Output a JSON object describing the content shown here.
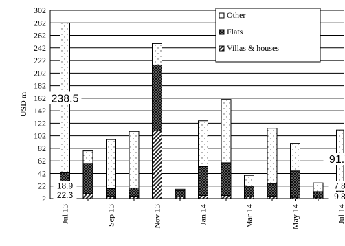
{
  "chart_data": {
    "type": "bar",
    "stacked": true,
    "ylabel": "USD m",
    "xlabel": "",
    "title": "",
    "ylim": [
      2,
      302
    ],
    "yticks": [
      2,
      22,
      42,
      62,
      82,
      102,
      122,
      142,
      162,
      182,
      202,
      222,
      242,
      262,
      282,
      302
    ],
    "grid": true,
    "legend_position": "top-right",
    "categories": [
      "Jul 13",
      "Aug 13",
      "Sep 13",
      "Oct 13",
      "Nov 13",
      "Dec 13",
      "Jan 14",
      "Feb 14",
      "Mar 14",
      "Apr 14",
      "May 14",
      "Jun 14",
      "Jul 14"
    ],
    "tick_labels": [
      "Jul 13",
      "",
      "Sep 13",
      "",
      "Nov 13",
      "",
      "Jan 14",
      "",
      "Mar 14",
      "",
      "May 14",
      "",
      "Jul 14"
    ],
    "series": [
      {
        "name": "Villas & houses",
        "pattern": "diagonal-hatch",
        "values": [
          22.3,
          8,
          4,
          4,
          108,
          3,
          5,
          5,
          3,
          4,
          2,
          2,
          9.8
        ]
      },
      {
        "name": "Flats",
        "pattern": "crosshatch",
        "values": [
          18.9,
          48,
          12,
          13,
          105,
          10,
          46,
          52,
          17,
          20,
          42,
          9,
          7.8
        ]
      },
      {
        "name": "Other",
        "pattern": "dotted",
        "values": [
          238.5,
          20,
          78,
          90,
          34,
          2,
          73,
          101,
          17,
          88,
          44,
          14,
          91.7
        ]
      }
    ],
    "data_labels": [
      {
        "category": "Jul 13",
        "series": "Other",
        "text": "238.5"
      },
      {
        "category": "Jul 13",
        "series": "Flats",
        "text": "18.9"
      },
      {
        "category": "Jul 13",
        "series": "Villas & houses",
        "text": "22.3"
      },
      {
        "category": "Jul 14",
        "series": "Other",
        "text": "91.7"
      },
      {
        "category": "Jul 14",
        "series": "Flats",
        "text": "7.8"
      },
      {
        "category": "Jul 14",
        "series": "Villas & houses",
        "text": "9.8"
      }
    ]
  }
}
